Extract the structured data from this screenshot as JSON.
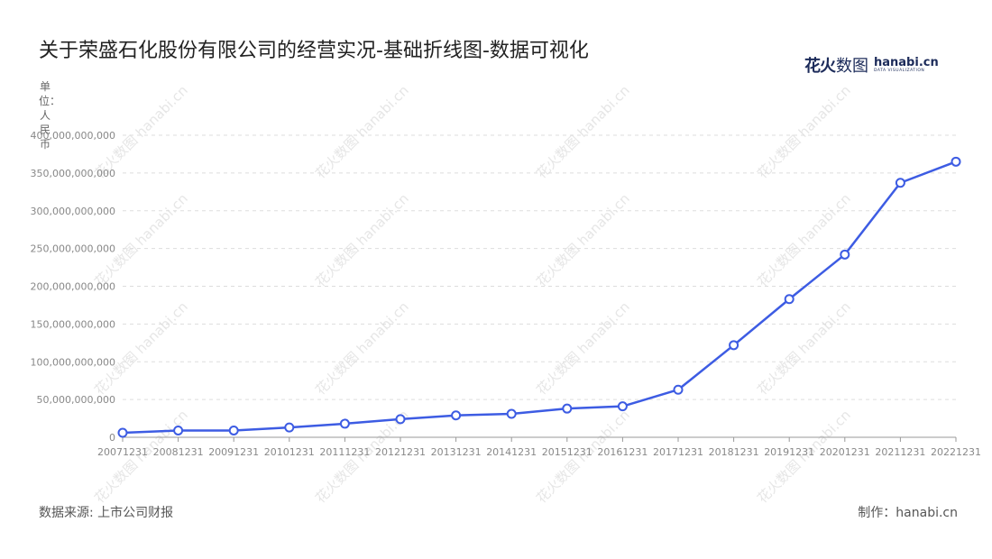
{
  "title": "关于荣盛石化股份有限公司的经营实况-基础折线图-数据可视化",
  "logo": {
    "cn_bold": "花火",
    "cn_light": "数图",
    "en": "hanabi.cn",
    "en_sub": "DATA VISUALIZATION"
  },
  "watermark_text": "花火数图 hanabi.cn",
  "footer": {
    "source": "数据来源: 上市公司财报",
    "credit": "制作：hanabi.cn"
  },
  "colors": {
    "line": "#3d5ce3",
    "grid": "#dddddd",
    "axis": "#999999",
    "tick_text": "#888888"
  },
  "chart_data": {
    "type": "line",
    "title": "关于荣盛石化股份有限公司的经营实况-基础折线图-数据可视化",
    "ylabel": "单位：人民币",
    "xlabel": "",
    "ylim": [
      0,
      400000000000
    ],
    "yticks": [
      0,
      50000000000,
      100000000000,
      150000000000,
      200000000000,
      250000000000,
      300000000000,
      350000000000,
      400000000000
    ],
    "ytick_labels": [
      "0",
      "50,000,000,000",
      "100,000,000,000",
      "150,000,000,000",
      "200,000,000,000",
      "250,000,000,000",
      "300,000,000,000",
      "350,000,000,000",
      "400,000,000,000"
    ],
    "grid": true,
    "legend": "none",
    "categories": [
      "20071231",
      "20081231",
      "20091231",
      "20101231",
      "20111231",
      "20121231",
      "20131231",
      "20141231",
      "20151231",
      "20161231",
      "20171231",
      "20181231",
      "20191231",
      "20201231",
      "20211231",
      "20221231"
    ],
    "values": [
      6000000000,
      9000000000,
      9000000000,
      13000000000,
      18000000000,
      24000000000,
      29000000000,
      31000000000,
      38000000000,
      41000000000,
      63000000000,
      122000000000,
      183000000000,
      242000000000,
      337000000000,
      365000000000
    ]
  }
}
